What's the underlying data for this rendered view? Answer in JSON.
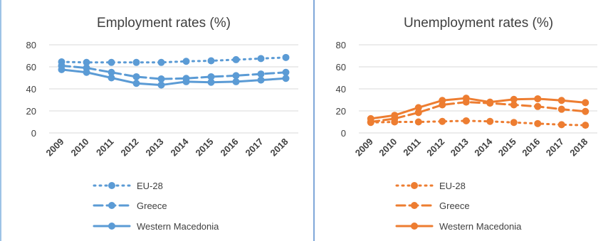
{
  "chart_data": [
    {
      "type": "line",
      "title": "Employment rates (%)",
      "x": [
        "2009",
        "2010",
        "2011",
        "2012",
        "2013",
        "2014",
        "2015",
        "2016",
        "2017",
        "2018"
      ],
      "ylim": [
        0,
        80
      ],
      "yticks": [
        0,
        20,
        40,
        60,
        80
      ],
      "grid": true,
      "legend_position": "bottom",
      "color": "#5b9bd5",
      "series": [
        {
          "name": "EU-28",
          "style": "dotted",
          "values": [
            64.5,
            64.0,
            64.0,
            64.0,
            64.0,
            65.0,
            65.5,
            66.5,
            67.5,
            68.5
          ]
        },
        {
          "name": "Greece",
          "style": "dashed",
          "values": [
            61.0,
            59.0,
            55.0,
            51.0,
            49.0,
            49.5,
            51.0,
            52.0,
            53.5,
            55.0
          ]
        },
        {
          "name": "Western Macedonia",
          "style": "solid",
          "values": [
            57.5,
            55.0,
            50.0,
            45.0,
            43.5,
            46.5,
            46.0,
            46.5,
            48.0,
            49.5
          ]
        }
      ]
    },
    {
      "type": "line",
      "title": "Unemployment rates (%)",
      "x": [
        "2009",
        "2010",
        "2011",
        "2012",
        "2013",
        "2014",
        "2015",
        "2016",
        "2017",
        "2018"
      ],
      "ylim": [
        0,
        80
      ],
      "yticks": [
        0,
        20,
        40,
        60,
        80
      ],
      "grid": true,
      "legend_position": "bottom",
      "color": "#ed7d31",
      "series": [
        {
          "name": "EU-28",
          "style": "dotted",
          "values": [
            9.5,
            10.0,
            10.0,
            10.5,
            11.0,
            10.5,
            9.5,
            8.5,
            7.5,
            7.0
          ]
        },
        {
          "name": "Greece",
          "style": "dashed",
          "values": [
            10.0,
            13.0,
            18.5,
            25.5,
            28.0,
            27.0,
            25.5,
            24.0,
            21.5,
            19.5
          ]
        },
        {
          "name": "Western Macedonia",
          "style": "solid",
          "values": [
            13.0,
            16.0,
            23.0,
            29.5,
            31.5,
            28.0,
            30.5,
            31.0,
            29.5,
            27.5
          ]
        }
      ]
    }
  ]
}
